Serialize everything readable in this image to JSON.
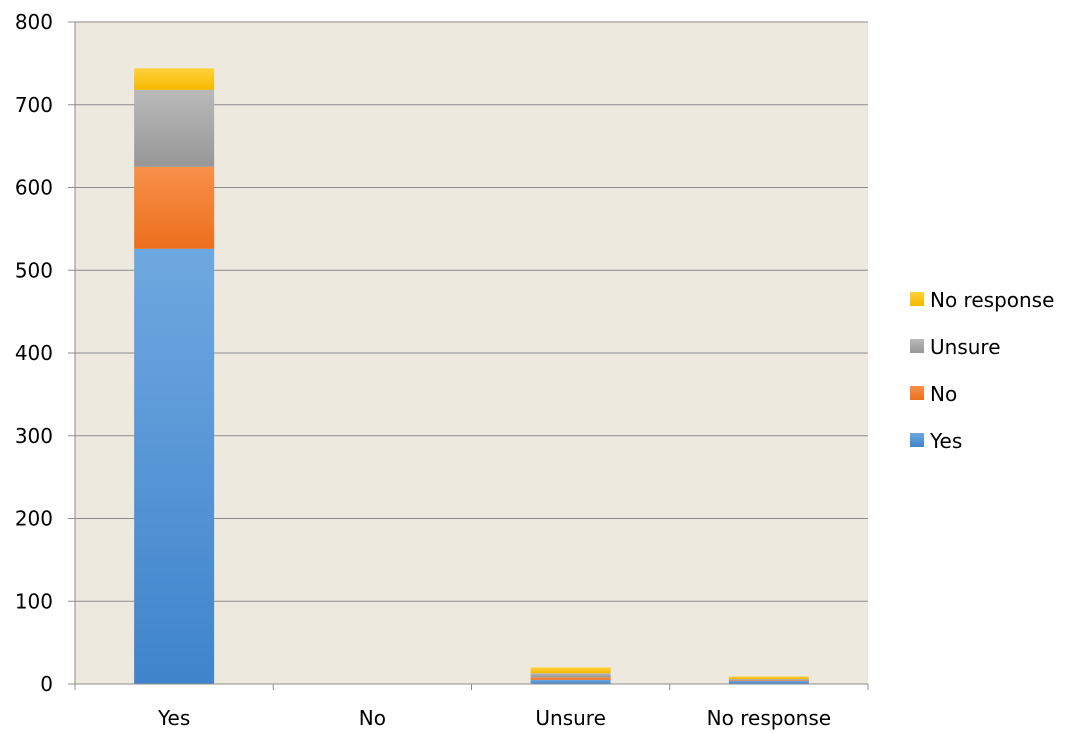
{
  "chart_data": {
    "type": "bar",
    "stacked": true,
    "categories": [
      "Yes",
      "No",
      "Unsure",
      "No response"
    ],
    "series": [
      {
        "name": "Yes",
        "values": [
          526,
          0,
          5,
          4
        ],
        "color": "#4a8bd0"
      },
      {
        "name": "No",
        "values": [
          99,
          0,
          3,
          1
        ],
        "color": "#f47f2a"
      },
      {
        "name": "Unsure",
        "values": [
          93,
          0,
          5,
          1
        ],
        "color": "#a5a5a5"
      },
      {
        "name": "No response",
        "values": [
          26,
          0,
          7,
          3
        ],
        "color": "#ffc000"
      }
    ],
    "ylim": [
      0,
      800
    ],
    "yticks": [
      "0",
      "100",
      "200",
      "300",
      "400",
      "500",
      "600",
      "700",
      "800"
    ],
    "ytick_values": [
      0,
      100,
      200,
      300,
      400,
      500,
      600,
      700,
      800
    ],
    "grid": true,
    "plot_background": "#ede9df",
    "legend_position": "right",
    "legend_order": [
      "No response",
      "Unsure",
      "No",
      "Yes"
    ],
    "title": "",
    "xlabel": "",
    "ylabel": ""
  }
}
